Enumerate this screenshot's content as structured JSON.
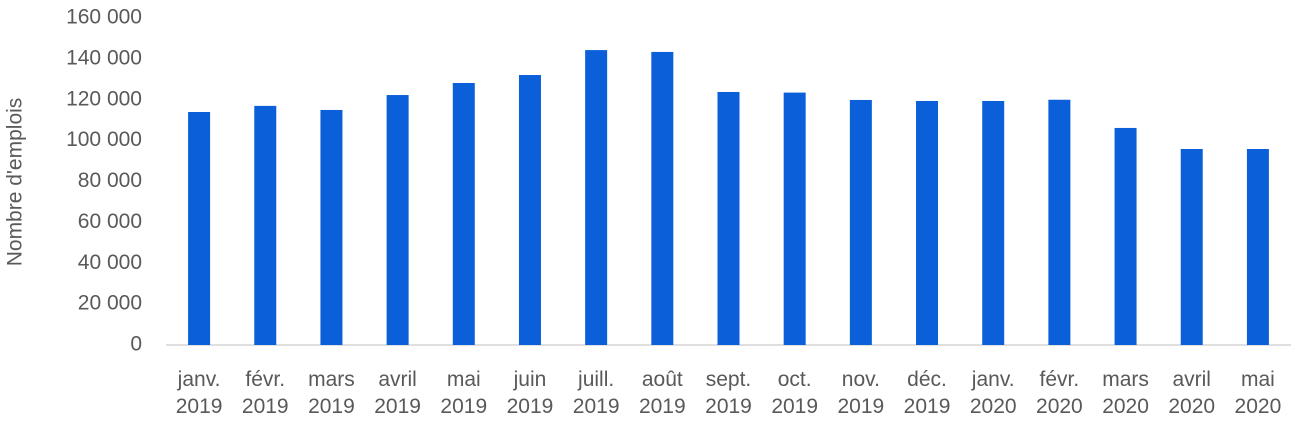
{
  "chart_data": {
    "type": "bar",
    "y_label": "Nombre d'emplois",
    "categories": [
      "janv. 2019",
      "févr. 2019",
      "mars 2019",
      "avril 2019",
      "mai 2019",
      "juin 2019",
      "juill. 2019",
      "août 2019",
      "sept. 2019",
      "oct. 2019",
      "nov. 2019",
      "déc. 2019",
      "janv. 2020",
      "févr. 2020",
      "mars 2020",
      "avril 2020",
      "mai 2020"
    ],
    "values": [
      114000,
      117000,
      115000,
      122300,
      128200,
      132100,
      144300,
      143400,
      123800,
      123500,
      119900,
      119400,
      119400,
      120000,
      106200,
      95900,
      95900
    ],
    "color": "#0b5fd9",
    "ylim": [
      0,
      160000
    ],
    "yticks": [
      0,
      {
        "value": 20000,
        "label": "20 000"
      },
      {
        "value": 40000,
        "label": "40 000"
      },
      {
        "value": 60000,
        "label": "60 000"
      },
      {
        "value": 80000,
        "label": "80 000"
      },
      {
        "value": 100000,
        "label": "100 000"
      },
      {
        "value": 120000,
        "label": "120 000"
      },
      {
        "value": 140000,
        "label": "140 000"
      },
      {
        "value": 160000,
        "label": "160 000"
      }
    ],
    "grid": false
  }
}
